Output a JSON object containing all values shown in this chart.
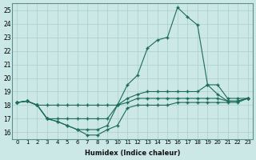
{
  "xlabel": "Humidex (Indice chaleur)",
  "bg_color": "#cce8e6",
  "grid_color": "#aacfcc",
  "line_color": "#1a6b5a",
  "xlim": [
    -0.5,
    23.5
  ],
  "ylim": [
    15.5,
    25.5
  ],
  "yticks": [
    16,
    17,
    18,
    19,
    20,
    21,
    22,
    23,
    24,
    25
  ],
  "xticks": [
    0,
    1,
    2,
    3,
    4,
    5,
    6,
    7,
    8,
    9,
    10,
    11,
    12,
    13,
    14,
    15,
    16,
    17,
    18,
    19,
    20,
    21,
    22,
    23
  ],
  "lines": [
    {
      "x": [
        0,
        1,
        2,
        3,
        4,
        5,
        6,
        7,
        8,
        9,
        10,
        11,
        12,
        13,
        14,
        15,
        16,
        17,
        18,
        19,
        20,
        21,
        22,
        23
      ],
      "y": [
        18.2,
        18.3,
        18.0,
        17.0,
        17.0,
        17.0,
        17.0,
        17.0,
        17.0,
        17.0,
        18.0,
        19.5,
        20.2,
        22.2,
        22.8,
        23.0,
        25.2,
        24.5,
        23.9,
        19.5,
        18.8,
        18.3,
        18.3,
        18.5
      ]
    },
    {
      "x": [
        0,
        1,
        2,
        3,
        4,
        5,
        6,
        7,
        8,
        9,
        10,
        11,
        12,
        13,
        14,
        15,
        16,
        17,
        18,
        19,
        20,
        21,
        22,
        23
      ],
      "y": [
        18.2,
        18.3,
        18.0,
        17.0,
        16.8,
        16.5,
        16.2,
        16.2,
        16.2,
        16.5,
        18.0,
        18.5,
        18.8,
        19.0,
        19.0,
        19.0,
        19.0,
        19.0,
        19.0,
        19.5,
        19.5,
        18.5,
        18.5,
        18.5
      ]
    },
    {
      "x": [
        0,
        1,
        2,
        3,
        4,
        5,
        6,
        7,
        8,
        9,
        10,
        11,
        12,
        13,
        14,
        15,
        16,
        17,
        18,
        19,
        20,
        21,
        22,
        23
      ],
      "y": [
        18.2,
        18.3,
        18.0,
        18.0,
        18.0,
        18.0,
        18.0,
        18.0,
        18.0,
        18.0,
        18.0,
        18.2,
        18.5,
        18.5,
        18.5,
        18.5,
        18.5,
        18.5,
        18.5,
        18.5,
        18.5,
        18.3,
        18.3,
        18.5
      ]
    },
    {
      "x": [
        0,
        1,
        2,
        3,
        4,
        5,
        6,
        7,
        8,
        9,
        10,
        11,
        12,
        13,
        14,
        15,
        16,
        17,
        18,
        19,
        20,
        21,
        22,
        23
      ],
      "y": [
        18.2,
        18.3,
        18.0,
        17.0,
        16.8,
        16.5,
        16.2,
        15.8,
        15.8,
        16.2,
        16.5,
        17.8,
        18.0,
        18.0,
        18.0,
        18.0,
        18.2,
        18.2,
        18.2,
        18.2,
        18.2,
        18.2,
        18.2,
        18.5
      ]
    }
  ]
}
